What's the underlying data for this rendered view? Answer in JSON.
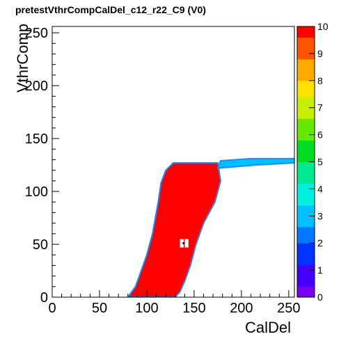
{
  "title": "pretestVthrCompCalDel_c12_r22_C9 (V0)",
  "chart_data": {
    "type": "heatmap",
    "title": "pretestVthrCompCalDel_c12_r22_C9 (V0)",
    "xlabel": "CalDel",
    "ylabel": "VthrComp",
    "xlim": [
      0,
      256
    ],
    "ylim": [
      0,
      256
    ],
    "x_ticks": [
      0,
      50,
      100,
      150,
      200,
      250
    ],
    "y_ticks": [
      0,
      50,
      100,
      150,
      200,
      250
    ],
    "z_range": [
      0,
      10
    ],
    "z_ticks": [
      0,
      1,
      2,
      3,
      4,
      5,
      6,
      7,
      8,
      9,
      10
    ],
    "colormap": "rainbow",
    "grid": false,
    "legend": "colorbar-right",
    "regions": [
      {
        "name": "saturated-band",
        "value": 10,
        "polygon": [
          [
            80,
            0
          ],
          [
            88,
            10
          ],
          [
            92,
            20
          ],
          [
            96,
            30
          ],
          [
            100,
            40
          ],
          [
            106,
            60
          ],
          [
            112,
            90
          ],
          [
            115,
            108
          ],
          [
            120,
            120
          ],
          [
            128,
            127
          ],
          [
            175,
            127
          ],
          [
            178,
            110
          ],
          [
            172,
            90
          ],
          [
            160,
            70
          ],
          [
            152,
            50
          ],
          [
            146,
            30
          ],
          [
            140,
            15
          ],
          [
            135,
            5
          ],
          [
            130,
            0
          ]
        ]
      },
      {
        "name": "plateau-tail",
        "value": 3,
        "polygon": [
          [
            175,
            122
          ],
          [
            215,
            125
          ],
          [
            256,
            127
          ],
          [
            256,
            131
          ],
          [
            210,
            131
          ],
          [
            178,
            129
          ]
        ]
      }
    ],
    "points": [
      {
        "x": 139,
        "y": 51,
        "value": 10
      },
      {
        "x": 137,
        "y": 53,
        "value": 0
      },
      {
        "x": 142,
        "y": 53,
        "value": 0
      },
      {
        "x": 137,
        "y": 49,
        "value": 0
      },
      {
        "x": 142,
        "y": 49,
        "value": 0
      }
    ]
  }
}
